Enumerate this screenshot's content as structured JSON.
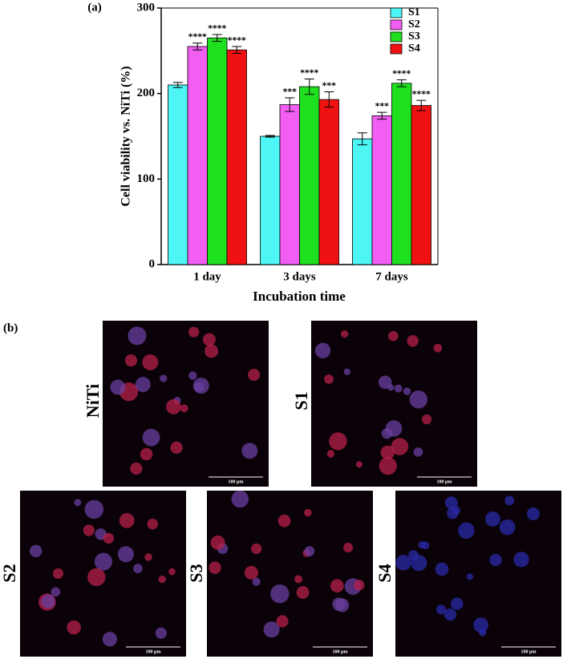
{
  "chart_data": {
    "type": "bar",
    "panel_label": "(a)",
    "xlabel": "Incubation time",
    "ylabel": "Cell viability vs. NiTi (%)",
    "categories": [
      "1 day",
      "3 days",
      "7 days"
    ],
    "ylim": [
      0,
      300
    ],
    "yticks": [
      0,
      100,
      200,
      300
    ],
    "legend": "upper right",
    "series": [
      {
        "name": "S1",
        "color": "#4df5f5",
        "values": [
          210,
          150,
          147
        ],
        "errors": [
          3,
          1,
          7
        ],
        "annotations": [
          null,
          null,
          null
        ]
      },
      {
        "name": "S2",
        "color": "#f25ef2",
        "values": [
          255,
          187,
          174
        ],
        "errors": [
          4,
          8,
          4
        ],
        "annotations": [
          "****",
          "***",
          "***"
        ]
      },
      {
        "name": "S3",
        "color": "#1fe01f",
        "values": [
          265,
          208,
          212
        ],
        "errors": [
          4,
          9,
          4
        ],
        "annotations": [
          "****",
          "****",
          "****"
        ]
      },
      {
        "name": "S4",
        "color": "#f01212",
        "values": [
          251,
          193,
          186
        ],
        "errors": [
          4,
          9,
          6
        ],
        "annotations": [
          "****",
          "***",
          "****"
        ]
      }
    ]
  },
  "figure_b": {
    "label": "(b)",
    "panels": [
      {
        "label": "NiTi",
        "scale_bar": "100 µm"
      },
      {
        "label": "S1",
        "scale_bar": "100 µm"
      },
      {
        "label": "S2",
        "scale_bar": "100 µm"
      },
      {
        "label": "S3",
        "scale_bar": "100 µm"
      },
      {
        "label": "S4",
        "scale_bar": "100 µm"
      }
    ]
  }
}
